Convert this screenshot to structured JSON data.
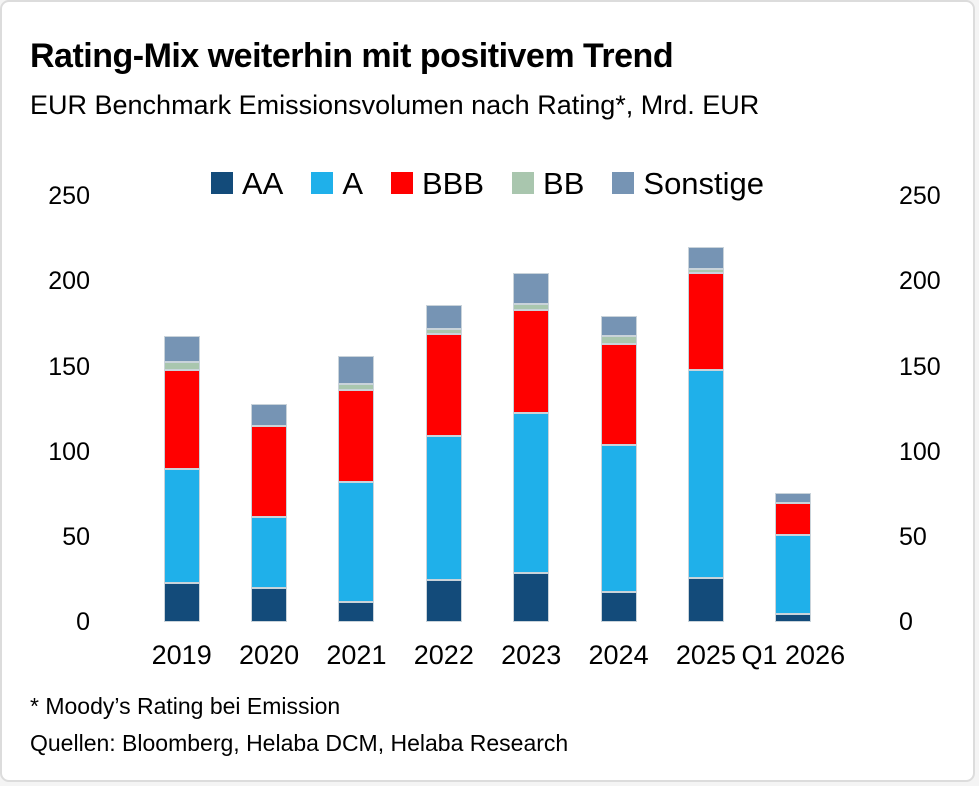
{
  "header": {
    "title": "Rating-Mix weiterhin mit positivem Trend",
    "subtitle": "EUR Benchmark Emissionsvolumen nach Rating*, Mrd. EUR"
  },
  "chart_data": {
    "type": "bar",
    "stacked": true,
    "title": "Rating-Mix weiterhin mit positivem Trend",
    "subtitle": "EUR Benchmark Emissionsvolumen nach Rating*, Mrd. EUR",
    "unit": "Mrd. EUR",
    "categories": [
      "2019",
      "2020",
      "2021",
      "2022",
      "2023",
      "2024",
      "2025",
      "Q1 2026"
    ],
    "series": [
      {
        "name": "AA",
        "color": "#134b7a",
        "values": [
          23,
          20,
          12,
          25,
          29,
          18,
          26,
          5
        ]
      },
      {
        "name": "A",
        "color": "#1fb0ea",
        "values": [
          67,
          42,
          70,
          84,
          94,
          86,
          122,
          46
        ]
      },
      {
        "name": "BBB",
        "color": "#ff0000",
        "values": [
          58,
          53,
          54,
          60,
          60,
          59,
          57,
          19
        ]
      },
      {
        "name": "BB",
        "color": "#a9c6ae",
        "values": [
          5,
          0,
          4,
          3,
          4,
          5,
          2,
          0
        ]
      },
      {
        "name": "Sonstige",
        "color": "#7694b4",
        "values": [
          15,
          13,
          16,
          14,
          18,
          12,
          13,
          6
        ]
      }
    ],
    "totals": [
      168,
      128,
      156,
      186,
      205,
      180,
      220,
      76
    ],
    "ylim": [
      0,
      250
    ],
    "yticks": [
      0,
      50,
      100,
      150,
      200,
      250
    ],
    "y_axis_left": true,
    "y_axis_right": true,
    "grid": false,
    "legend_position": "top"
  },
  "footer": {
    "footnote": "* Moody’s Rating bei Emission",
    "sources": "Quellen: Bloomberg, Helaba DCM, Helaba Research"
  },
  "colors": {
    "aa": "#134b7a",
    "a": "#1fb0ea",
    "bbb": "#ff0000",
    "bb": "#a9c6ae",
    "sonstige": "#7694b4",
    "segment_border": "#c9d3da",
    "card_border": "#dcdcdc",
    "background": "#ffffff",
    "text": "#000000"
  }
}
